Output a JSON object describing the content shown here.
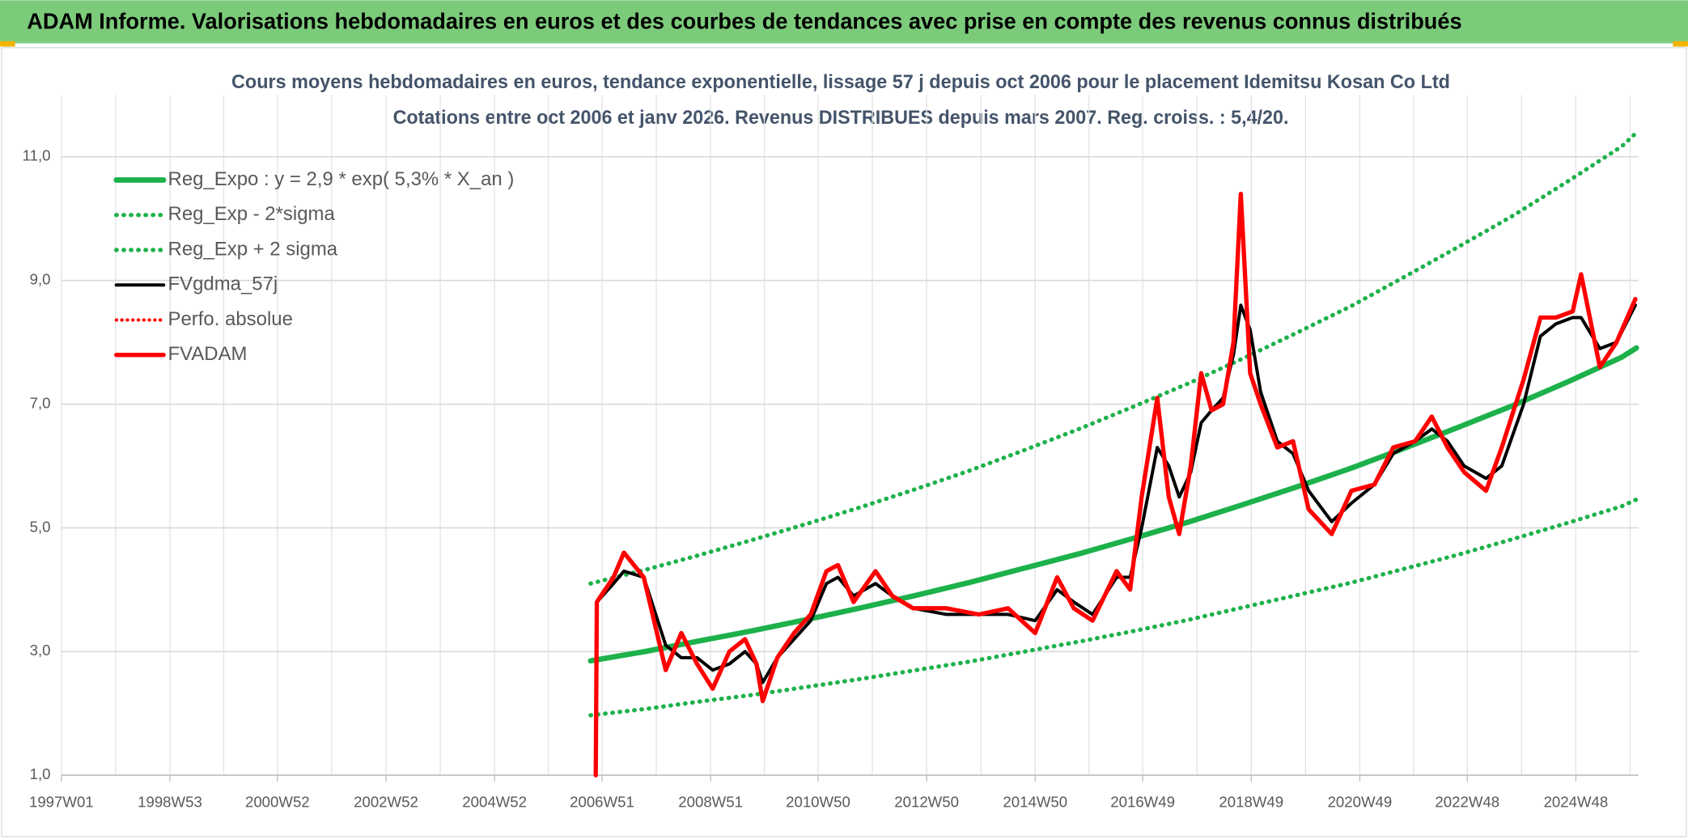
{
  "header": {
    "title": "ADAM Informe. Valorisations hebdomadaires en euros et des courbes de tendances avec prise en compte des revenus connus distribués"
  },
  "chart_data": {
    "type": "line",
    "title": "Cours moyens hebdomadaires en euros, tendance exponentielle, lissage 57 j depuis oct 2006 pour le placement Idemitsu Kosan Co Ltd",
    "subtitle": "Cotations entre oct 2006 et janv 2026. Revenus DISTRIBUES depuis mars 2007. Reg. croiss. : 5,4/20.",
    "xlim": [
      "1997W01",
      "2026W04"
    ],
    "xticks": [
      "1997W01",
      "1998W53",
      "2000W52",
      "2002W52",
      "2004W52",
      "2006W51",
      "2008W51",
      "2010W50",
      "2012W50",
      "2014W50",
      "2016W49",
      "2018W49",
      "2020W49",
      "2022W48",
      "2024W48"
    ],
    "ylim": [
      1,
      12
    ],
    "yticks": [
      {
        "value": 1,
        "label": "1,0"
      },
      {
        "value": 3,
        "label": "3,0"
      },
      {
        "value": 5,
        "label": "5,0"
      },
      {
        "value": 7,
        "label": "7,0"
      },
      {
        "value": 9,
        "label": "9,0"
      },
      {
        "value": 11,
        "label": "11,0"
      }
    ],
    "grid": true,
    "legend": "top-left",
    "series": [
      {
        "name": "Reg_Expo : y = 2,9 * exp( 5,3% *  X_an )",
        "color": "#1db14b",
        "width": 5,
        "style": "solid",
        "x": [
          "2006W40",
          "2007W40",
          "2008W40",
          "2009W40",
          "2010W40",
          "2011W40",
          "2012W40",
          "2013W40",
          "2014W40",
          "2015W40",
          "2016W40",
          "2017W40",
          "2018W40",
          "2019W40",
          "2020W40",
          "2021W40",
          "2022W40",
          "2023W40",
          "2024W40",
          "2025W40",
          "2026W02"
        ],
        "values": [
          2.85,
          3.0,
          3.17,
          3.34,
          3.52,
          3.71,
          3.91,
          4.12,
          4.35,
          4.58,
          4.83,
          5.09,
          5.37,
          5.66,
          5.96,
          6.29,
          6.63,
          6.98,
          7.36,
          7.76,
          7.91
        ]
      },
      {
        "name": "Reg_Exp - 2*sigma",
        "color": "#1db14b",
        "width": 4,
        "style": "dotted",
        "x": [
          "2006W40",
          "2007W40",
          "2008W40",
          "2009W40",
          "2010W40",
          "2011W40",
          "2012W40",
          "2013W40",
          "2014W40",
          "2015W40",
          "2016W40",
          "2017W40",
          "2018W40",
          "2019W40",
          "2020W40",
          "2021W40",
          "2022W40",
          "2023W40",
          "2024W40",
          "2025W40",
          "2026W02"
        ],
        "values": [
          1.97,
          2.07,
          2.19,
          2.3,
          2.43,
          2.56,
          2.7,
          2.84,
          3.0,
          3.16,
          3.33,
          3.51,
          3.71,
          3.91,
          4.11,
          4.34,
          4.57,
          4.82,
          5.08,
          5.35,
          5.46
        ]
      },
      {
        "name": "Reg_Exp + 2 sigma",
        "color": "#1db14b",
        "width": 4,
        "style": "dotted",
        "x": [
          "2006W40",
          "2007W40",
          "2008W40",
          "2009W40",
          "2010W40",
          "2011W40",
          "2012W40",
          "2013W40",
          "2014W40",
          "2015W40",
          "2016W40",
          "2017W40",
          "2018W40",
          "2019W40",
          "2020W40",
          "2021W40",
          "2022W40",
          "2023W40",
          "2024W40",
          "2025W40",
          "2026W02"
        ],
        "values": [
          4.1,
          4.32,
          4.56,
          4.81,
          5.07,
          5.34,
          5.63,
          5.93,
          6.26,
          6.6,
          6.96,
          7.33,
          7.73,
          8.15,
          8.58,
          9.06,
          9.55,
          10.05,
          10.6,
          11.17,
          11.39
        ]
      },
      {
        "name": "FVgdma_57j",
        "color": "#000000",
        "width": 3,
        "style": "solid",
        "x": [
          "2006W45",
          "2006W46",
          "2007W10",
          "2007W20",
          "2007W39",
          "2008W08",
          "2008W23",
          "2008W38",
          "2009W01",
          "2009W17",
          "2009W32",
          "2009W43",
          "2009W49",
          "2010W11",
          "2010W27",
          "2010W43",
          "2011W06",
          "2011W17",
          "2011W32",
          "2012W01",
          "2012W17",
          "2012W37",
          "2013W17",
          "2013W48",
          "2014W24",
          "2014W50",
          "2015W19",
          "2015W35",
          "2016W01",
          "2016W24",
          "2016W37",
          "2016W48",
          "2017W11",
          "2017W22",
          "2017W32",
          "2017W43",
          "2018W01",
          "2018W11",
          "2018W22",
          "2018W32",
          "2018W39",
          "2018W48",
          "2019W06",
          "2019W22",
          "2019W37",
          "2019W52",
          "2020W22",
          "2020W41",
          "2021W11",
          "2021W29",
          "2021W50",
          "2022W14",
          "2022W29",
          "2022W45",
          "2023W14",
          "2023W29",
          "2023W50",
          "2024W14",
          "2024W29",
          "2024W45",
          "2025W01",
          "2025W19",
          "2025W35",
          "2026W01"
        ],
        "values": [
          null,
          3.8,
          4.1,
          4.3,
          4.2,
          3.1,
          2.9,
          2.9,
          2.7,
          2.8,
          3.0,
          2.8,
          2.5,
          2.9,
          3.2,
          3.5,
          4.1,
          4.2,
          3.9,
          4.1,
          3.9,
          3.7,
          3.6,
          3.6,
          3.6,
          3.5,
          4.0,
          3.8,
          3.6,
          4.2,
          4.2,
          5.0,
          6.3,
          6.0,
          5.5,
          5.9,
          6.7,
          6.9,
          7.1,
          7.8,
          8.6,
          8.2,
          7.2,
          6.4,
          6.2,
          5.6,
          5.1,
          5.4,
          5.7,
          6.2,
          6.4,
          6.6,
          6.4,
          6.0,
          5.8,
          6.0,
          7.0,
          8.1,
          8.3,
          8.4,
          8.4,
          7.9,
          8.0,
          8.6
        ]
      },
      {
        "name": "Perfo. absolue",
        "color": "#ff0000",
        "width": 3,
        "style": "dotted",
        "x": [],
        "values": []
      },
      {
        "name": "FVADAM",
        "color": "#ff0000",
        "width": 4,
        "style": "solid",
        "x": [
          "2006W45",
          "2006W46",
          "2007W10",
          "2007W20",
          "2007W39",
          "2008W08",
          "2008W23",
          "2008W38",
          "2009W01",
          "2009W17",
          "2009W32",
          "2009W43",
          "2009W49",
          "2010W11",
          "2010W27",
          "2010W43",
          "2011W06",
          "2011W17",
          "2011W32",
          "2012W01",
          "2012W17",
          "2012W37",
          "2013W17",
          "2013W48",
          "2014W24",
          "2014W50",
          "2015W19",
          "2015W35",
          "2016W01",
          "2016W24",
          "2016W37",
          "2016W48",
          "2017W11",
          "2017W22",
          "2017W32",
          "2017W43",
          "2018W01",
          "2018W11",
          "2018W22",
          "2018W32",
          "2018W39",
          "2018W48",
          "2019W06",
          "2019W22",
          "2019W37",
          "2019W52",
          "2020W22",
          "2020W41",
          "2021W11",
          "2021W29",
          "2021W50",
          "2022W14",
          "2022W29",
          "2022W45",
          "2023W14",
          "2023W29",
          "2023W50",
          "2024W14",
          "2024W29",
          "2024W45",
          "2025W01",
          "2025W19",
          "2025W35",
          "2026W01"
        ],
        "values": [
          1.0,
          3.8,
          4.2,
          4.6,
          4.2,
          2.7,
          3.3,
          2.8,
          2.4,
          3.0,
          3.2,
          2.8,
          2.2,
          2.9,
          3.3,
          3.6,
          4.3,
          4.4,
          3.8,
          4.3,
          3.9,
          3.7,
          3.7,
          3.6,
          3.7,
          3.3,
          4.2,
          3.7,
          3.5,
          4.3,
          4.0,
          5.5,
          7.1,
          5.5,
          4.9,
          6.0,
          7.5,
          6.9,
          7.0,
          8.0,
          10.4,
          7.5,
          7.0,
          6.3,
          6.4,
          5.3,
          4.9,
          5.6,
          5.7,
          6.3,
          6.4,
          6.8,
          6.3,
          5.9,
          5.6,
          6.3,
          7.4,
          8.4,
          8.4,
          8.5,
          9.1,
          7.6,
          8.0,
          8.7
        ]
      }
    ]
  }
}
